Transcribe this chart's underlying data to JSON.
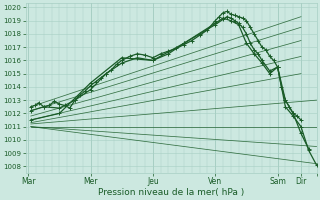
{
  "background_color": "#cce8e0",
  "grid_color": "#a8cfc4",
  "line_color": "#1a5c28",
  "yticks": [
    1008,
    1009,
    1010,
    1011,
    1012,
    1013,
    1014,
    1015,
    1016,
    1017,
    1018,
    1019,
    1020
  ],
  "ylim": [
    1007.5,
    1020.3
  ],
  "xlim": [
    -2,
    222
  ],
  "xlabel": "Pression niveau de la mer( hPa )",
  "x_day_ticks": [
    0,
    48,
    96,
    144,
    192,
    210,
    222
  ],
  "x_day_labels": [
    "Mar",
    "Mer",
    "Jeu",
    "Ven",
    "Sam",
    "Dir",
    ""
  ],
  "fan_lines": [
    {
      "x0": 2,
      "y0": 1012.5,
      "x1": 210,
      "y1": 1019.3
    },
    {
      "x0": 2,
      "y0": 1012.2,
      "x1": 210,
      "y1": 1018.5
    },
    {
      "x0": 2,
      "y0": 1011.8,
      "x1": 210,
      "y1": 1017.5
    },
    {
      "x0": 2,
      "y0": 1011.5,
      "x1": 210,
      "y1": 1016.3
    },
    {
      "x0": 2,
      "y0": 1011.3,
      "x1": 210,
      "y1": 1015.0
    },
    {
      "x0": 2,
      "y0": 1011.2,
      "x1": 222,
      "y1": 1013.0
    },
    {
      "x0": 2,
      "y0": 1011.0,
      "x1": 222,
      "y1": 1011.0
    },
    {
      "x0": 2,
      "y0": 1011.0,
      "x1": 222,
      "y1": 1009.5
    },
    {
      "x0": 2,
      "y0": 1011.0,
      "x1": 222,
      "y1": 1008.2
    }
  ],
  "forecast_lines": [
    {
      "x": [
        2,
        5,
        8,
        12,
        16,
        20,
        24,
        28,
        32,
        36,
        40,
        44,
        48,
        52,
        56,
        60,
        64,
        68,
        72,
        78,
        84,
        90,
        96,
        102,
        108,
        114,
        120,
        126,
        132,
        138,
        144,
        147,
        150,
        153,
        156,
        159,
        162,
        165,
        168,
        171,
        174,
        177,
        180,
        183,
        186,
        189,
        192,
        195,
        198,
        201,
        204,
        207,
        210
      ],
      "y": [
        1012.5,
        1012.6,
        1012.8,
        1012.5,
        1012.6,
        1012.9,
        1012.7,
        1012.6,
        1012.4,
        1013.0,
        1013.4,
        1013.7,
        1014.1,
        1014.4,
        1014.7,
        1015.0,
        1015.3,
        1015.7,
        1016.0,
        1016.3,
        1016.5,
        1016.4,
        1016.2,
        1016.5,
        1016.7,
        1016.9,
        1017.2,
        1017.5,
        1017.9,
        1018.3,
        1019.0,
        1019.3,
        1019.6,
        1019.7,
        1019.5,
        1019.4,
        1019.3,
        1019.2,
        1019.0,
        1018.5,
        1018.0,
        1017.5,
        1017.0,
        1016.8,
        1016.3,
        1016.0,
        1015.5,
        1014.0,
        1013.0,
        1012.5,
        1012.0,
        1011.8,
        1011.5
      ],
      "marker": "+",
      "lw": 0.9
    },
    {
      "x": [
        2,
        12,
        24,
        36,
        48,
        60,
        72,
        84,
        96,
        108,
        120,
        132,
        144,
        150,
        153,
        156,
        159,
        162,
        165,
        168,
        171,
        174,
        177,
        180,
        186,
        192,
        198,
        204,
        210,
        216
      ],
      "y": [
        1012.2,
        1012.5,
        1012.4,
        1013.0,
        1013.8,
        1015.0,
        1015.8,
        1016.2,
        1016.0,
        1016.5,
        1017.3,
        1018.0,
        1018.7,
        1019.1,
        1019.3,
        1019.2,
        1019.0,
        1018.8,
        1018.5,
        1018.0,
        1017.3,
        1016.8,
        1016.5,
        1016.0,
        1015.2,
        1015.5,
        1013.0,
        1012.0,
        1010.5,
        1009.3
      ],
      "marker": "+",
      "lw": 0.9
    },
    {
      "x": [
        2,
        24,
        48,
        72,
        96,
        120,
        144,
        150,
        156,
        162,
        168,
        174,
        180,
        186,
        192,
        198,
        204,
        210,
        216,
        222
      ],
      "y": [
        1011.5,
        1012.0,
        1014.3,
        1016.2,
        1016.0,
        1017.3,
        1018.8,
        1019.2,
        1019.0,
        1018.7,
        1017.3,
        1016.5,
        1015.8,
        1015.0,
        1015.5,
        1012.5,
        1011.8,
        1011.0,
        1009.2,
        1008.1
      ],
      "marker": "+",
      "lw": 0.9
    }
  ]
}
